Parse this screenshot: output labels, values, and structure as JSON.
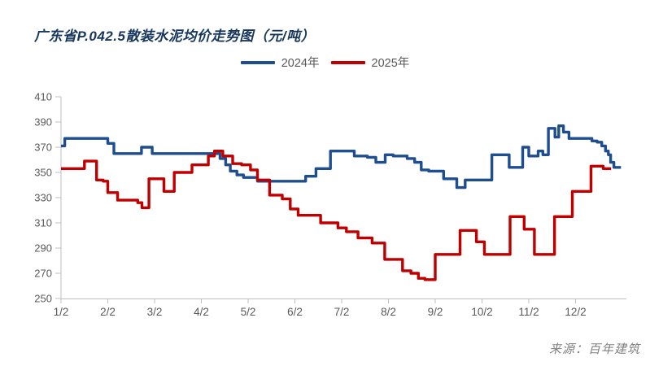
{
  "title": "广东省P.042.5散装水泥均价走势图（元/吨）",
  "source": "来源：百年建筑",
  "legend": {
    "items": [
      {
        "label": "2024年",
        "color": "#1f4e8f"
      },
      {
        "label": "2025年",
        "color": "#c00000"
      }
    ]
  },
  "colors": {
    "title": "#17365d",
    "axis": "#bfbfbf",
    "tick_label": "#595959",
    "series_2024": "#1f4e8f",
    "series_2025": "#c00000"
  },
  "chart_data": {
    "type": "line",
    "subtype": "step",
    "title": "广东省P.042.5散装水泥均价走势图（元/吨）",
    "ylabel": "元/吨",
    "ylim": [
      250,
      410
    ],
    "yticks": [
      250,
      270,
      290,
      310,
      330,
      350,
      370,
      390,
      410
    ],
    "xtick_labels": [
      "1/2",
      "2/2",
      "3/2",
      "4/2",
      "5/2",
      "6/2",
      "7/2",
      "8/2",
      "9/2",
      "10/2",
      "11/2",
      "12/2"
    ],
    "x_axis_note": "x values are month positions: 1.0 = Jan 2, 12.0 = Dec 2; prices change in weekly steps",
    "grid": false,
    "legend_position": "top-center",
    "series": [
      {
        "name": "2024年",
        "color": "#1f4e8f",
        "points": [
          [
            1.0,
            371
          ],
          [
            1.08,
            377
          ],
          [
            2.0,
            373
          ],
          [
            2.13,
            365
          ],
          [
            2.72,
            370
          ],
          [
            2.95,
            365
          ],
          [
            4.4,
            361
          ],
          [
            4.52,
            356
          ],
          [
            4.62,
            351
          ],
          [
            4.76,
            348
          ],
          [
            4.9,
            346
          ],
          [
            5.2,
            343
          ],
          [
            6.23,
            347
          ],
          [
            6.45,
            353
          ],
          [
            6.76,
            367
          ],
          [
            7.27,
            363
          ],
          [
            7.55,
            362
          ],
          [
            7.73,
            358
          ],
          [
            7.93,
            364
          ],
          [
            8.1,
            363
          ],
          [
            8.4,
            361
          ],
          [
            8.56,
            358
          ],
          [
            8.7,
            352
          ],
          [
            8.86,
            351
          ],
          [
            9.18,
            345
          ],
          [
            9.46,
            338
          ],
          [
            9.64,
            344
          ],
          [
            10.21,
            364
          ],
          [
            10.58,
            354
          ],
          [
            10.87,
            370
          ],
          [
            11.0,
            363
          ],
          [
            11.2,
            367
          ],
          [
            11.3,
            364
          ],
          [
            11.42,
            385
          ],
          [
            11.56,
            378
          ],
          [
            11.64,
            387
          ],
          [
            11.74,
            382
          ],
          [
            11.86,
            377
          ],
          [
            12.35,
            375
          ],
          [
            12.46,
            374
          ],
          [
            12.56,
            371
          ],
          [
            12.64,
            367
          ],
          [
            12.7,
            364
          ],
          [
            12.75,
            358
          ],
          [
            12.82,
            354
          ],
          [
            12.97,
            354
          ]
        ]
      },
      {
        "name": "2025年",
        "color": "#c00000",
        "points": [
          [
            1.0,
            353
          ],
          [
            1.5,
            359
          ],
          [
            1.76,
            344
          ],
          [
            1.9,
            343
          ],
          [
            2.0,
            334
          ],
          [
            2.21,
            328
          ],
          [
            2.64,
            326
          ],
          [
            2.73,
            322
          ],
          [
            2.88,
            345
          ],
          [
            3.2,
            335
          ],
          [
            3.42,
            350
          ],
          [
            3.8,
            356
          ],
          [
            4.15,
            363
          ],
          [
            4.28,
            367
          ],
          [
            4.46,
            363
          ],
          [
            4.67,
            357
          ],
          [
            4.86,
            356
          ],
          [
            5.05,
            352
          ],
          [
            5.2,
            344
          ],
          [
            5.46,
            332
          ],
          [
            5.73,
            329
          ],
          [
            5.9,
            321
          ],
          [
            6.07,
            316
          ],
          [
            6.55,
            310
          ],
          [
            6.92,
            306
          ],
          [
            7.1,
            303
          ],
          [
            7.35,
            298
          ],
          [
            7.65,
            294
          ],
          [
            7.92,
            281
          ],
          [
            8.3,
            272
          ],
          [
            8.48,
            270
          ],
          [
            8.64,
            266
          ],
          [
            8.78,
            265
          ],
          [
            9.0,
            285
          ],
          [
            9.53,
            304
          ],
          [
            9.88,
            295
          ],
          [
            10.05,
            285
          ],
          [
            10.6,
            315
          ],
          [
            10.9,
            305
          ],
          [
            11.12,
            285
          ],
          [
            11.55,
            315
          ],
          [
            11.93,
            335
          ],
          [
            12.33,
            355
          ],
          [
            12.59,
            353
          ],
          [
            12.76,
            353
          ]
        ]
      }
    ]
  }
}
